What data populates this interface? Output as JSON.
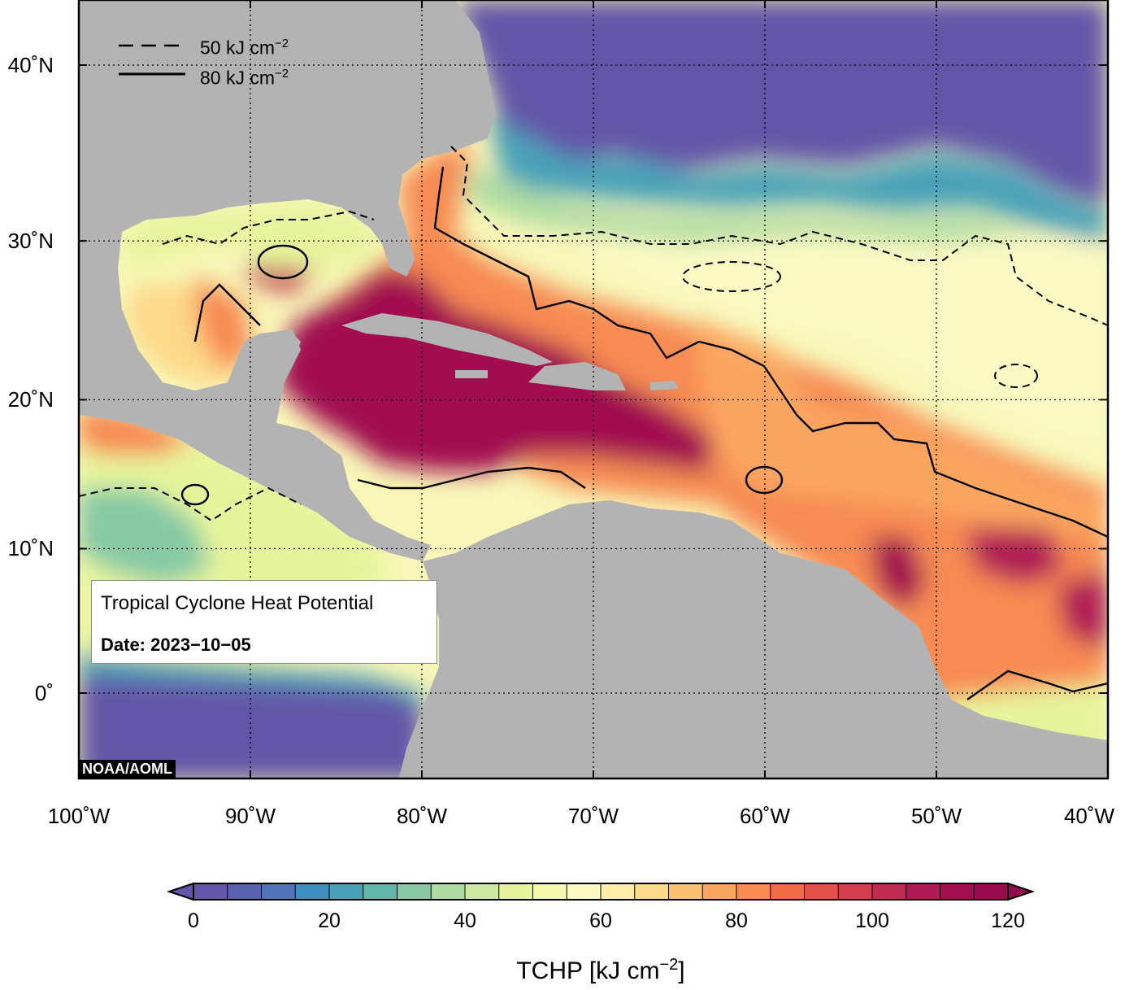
{
  "map": {
    "lat_ticks": [
      {
        "label": "40˚N",
        "lat": 40
      },
      {
        "label": "30˚N",
        "lat": 30
      },
      {
        "label": "20˚N",
        "lat": 20
      },
      {
        "label": "10˚N",
        "lat": 10
      },
      {
        "label": "0˚",
        "lat": 0
      }
    ],
    "lon_ticks": [
      {
        "label": "100˚W",
        "lon": -100
      },
      {
        "label": "90˚W",
        "lon": -90
      },
      {
        "label": "80˚W",
        "lon": -80
      },
      {
        "label": "70˚W",
        "lon": -70
      },
      {
        "label": "60˚W",
        "lon": -60
      },
      {
        "label": "50˚W",
        "lon": -50
      },
      {
        "label": "40˚W",
        "lon": -40
      }
    ],
    "extent": {
      "lon_min": -100,
      "lon_max": -40,
      "lat_min": -5,
      "lat_max": 45
    },
    "grid": "dotted",
    "land_color": "#b3b3b3"
  },
  "legend": {
    "dashed_value": "50 kJ cm",
    "solid_value": "80 kJ cm",
    "exponent": "−2"
  },
  "info_box": {
    "title": "Tropical Cyclone Heat Potential",
    "date_label": "Date: 2023−10−05"
  },
  "credit": "NOAA/AOML",
  "colorbar": {
    "title_main": "TCHP [kJ cm",
    "title_exp": "−2",
    "title_end": "]",
    "ticks": [
      {
        "label": "0",
        "value": 0
      },
      {
        "label": "20",
        "value": 20
      },
      {
        "label": "40",
        "value": 40
      },
      {
        "label": "60",
        "value": 60
      },
      {
        "label": "80",
        "value": 80
      },
      {
        "label": "100",
        "value": 100
      },
      {
        "label": "120",
        "value": 120
      }
    ],
    "min": 0,
    "max": 120,
    "step": 5,
    "colors": [
      "#6356a8",
      "#5b5fb1",
      "#4f75b7",
      "#3f8fc0",
      "#4aa2b8",
      "#63b8ab",
      "#86c9a4",
      "#aedca2",
      "#cdeaa0",
      "#e6f59c",
      "#f3f9ab",
      "#fbfac4",
      "#feeda6",
      "#fdd989",
      "#fdc173",
      "#fba660",
      "#f78b52",
      "#ef6c47",
      "#e4514a",
      "#d4404f",
      "#c12c54",
      "#b11b55",
      "#a10f50",
      "#970a4b"
    ]
  }
}
